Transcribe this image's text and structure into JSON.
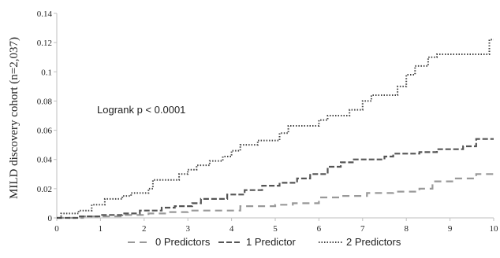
{
  "chart_data": {
    "type": "line",
    "ylabel": "MILD discovery cohort (n=2,037)",
    "xlim": [
      0,
      10
    ],
    "ylim": [
      0,
      0.14
    ],
    "x_ticks": [
      0,
      1,
      2,
      3,
      4,
      5,
      6,
      7,
      8,
      9,
      10
    ],
    "y_ticks": [
      0,
      0.02,
      0.04,
      0.06,
      0.08,
      0.1,
      0.12,
      0.14
    ],
    "y_tick_labels": [
      "0",
      "0.02",
      "0.04",
      "0.06",
      "0.08",
      "0.1",
      "0.12",
      "0.14"
    ],
    "grid": false,
    "legend_position": "bottom",
    "annotation": "Logrank p  < 0.0001",
    "series": [
      {
        "name": "0 Predictors",
        "style": "dashed-long",
        "color": "#999999",
        "points": [
          [
            0,
            0
          ],
          [
            0.6,
            0
          ],
          [
            0.6,
            0.001
          ],
          [
            1.5,
            0.001
          ],
          [
            1.5,
            0.002
          ],
          [
            2.1,
            0.002
          ],
          [
            2.1,
            0.003
          ],
          [
            2.5,
            0.003
          ],
          [
            2.5,
            0.004
          ],
          [
            3.0,
            0.004
          ],
          [
            3.0,
            0.005
          ],
          [
            4.2,
            0.005
          ],
          [
            4.2,
            0.008
          ],
          [
            5.0,
            0.008
          ],
          [
            5.0,
            0.009
          ],
          [
            5.4,
            0.009
          ],
          [
            5.4,
            0.01
          ],
          [
            6.0,
            0.01
          ],
          [
            6.0,
            0.014
          ],
          [
            6.5,
            0.014
          ],
          [
            6.5,
            0.015
          ],
          [
            7.1,
            0.015
          ],
          [
            7.1,
            0.017
          ],
          [
            7.7,
            0.017
          ],
          [
            7.7,
            0.018
          ],
          [
            8.3,
            0.018
          ],
          [
            8.3,
            0.02
          ],
          [
            8.6,
            0.02
          ],
          [
            8.6,
            0.025
          ],
          [
            9.1,
            0.025
          ],
          [
            9.1,
            0.027
          ],
          [
            9.6,
            0.027
          ],
          [
            9.6,
            0.03
          ],
          [
            10.0,
            0.03
          ]
        ]
      },
      {
        "name": "1 Predictor",
        "style": "dashed",
        "color": "#555555",
        "points": [
          [
            0,
            0
          ],
          [
            0.5,
            0
          ],
          [
            0.5,
            0.001
          ],
          [
            1.0,
            0.001
          ],
          [
            1.0,
            0.002
          ],
          [
            1.5,
            0.002
          ],
          [
            1.5,
            0.003
          ],
          [
            1.9,
            0.003
          ],
          [
            1.9,
            0.005
          ],
          [
            2.4,
            0.005
          ],
          [
            2.4,
            0.007
          ],
          [
            2.7,
            0.007
          ],
          [
            2.7,
            0.008
          ],
          [
            3.1,
            0.008
          ],
          [
            3.1,
            0.01
          ],
          [
            3.3,
            0.01
          ],
          [
            3.3,
            0.013
          ],
          [
            3.9,
            0.013
          ],
          [
            3.9,
            0.016
          ],
          [
            4.3,
            0.016
          ],
          [
            4.3,
            0.019
          ],
          [
            4.7,
            0.019
          ],
          [
            4.7,
            0.022
          ],
          [
            5.1,
            0.022
          ],
          [
            5.1,
            0.024
          ],
          [
            5.5,
            0.024
          ],
          [
            5.5,
            0.027
          ],
          [
            5.8,
            0.027
          ],
          [
            5.8,
            0.03
          ],
          [
            6.2,
            0.03
          ],
          [
            6.2,
            0.035
          ],
          [
            6.5,
            0.035
          ],
          [
            6.5,
            0.038
          ],
          [
            6.8,
            0.038
          ],
          [
            6.8,
            0.04
          ],
          [
            7.5,
            0.04
          ],
          [
            7.5,
            0.042
          ],
          [
            7.7,
            0.042
          ],
          [
            7.7,
            0.044
          ],
          [
            8.3,
            0.044
          ],
          [
            8.3,
            0.045
          ],
          [
            8.7,
            0.045
          ],
          [
            8.7,
            0.047
          ],
          [
            9.3,
            0.047
          ],
          [
            9.3,
            0.049
          ],
          [
            9.6,
            0.049
          ],
          [
            9.6,
            0.054
          ],
          [
            10.0,
            0.054
          ]
        ]
      },
      {
        "name": "2 Predictors",
        "style": "dotted",
        "color": "#444444",
        "points": [
          [
            0,
            0
          ],
          [
            0.1,
            0
          ],
          [
            0.1,
            0.003
          ],
          [
            0.5,
            0.003
          ],
          [
            0.5,
            0.005
          ],
          [
            0.8,
            0.005
          ],
          [
            0.8,
            0.009
          ],
          [
            1.1,
            0.009
          ],
          [
            1.1,
            0.013
          ],
          [
            1.5,
            0.013
          ],
          [
            1.5,
            0.015
          ],
          [
            1.7,
            0.015
          ],
          [
            1.7,
            0.017
          ],
          [
            2.1,
            0.017
          ],
          [
            2.1,
            0.02
          ],
          [
            2.2,
            0.02
          ],
          [
            2.2,
            0.026
          ],
          [
            2.8,
            0.026
          ],
          [
            2.8,
            0.03
          ],
          [
            3.0,
            0.03
          ],
          [
            3.0,
            0.033
          ],
          [
            3.2,
            0.033
          ],
          [
            3.2,
            0.036
          ],
          [
            3.5,
            0.036
          ],
          [
            3.5,
            0.039
          ],
          [
            3.8,
            0.039
          ],
          [
            3.8,
            0.042
          ],
          [
            4.0,
            0.042
          ],
          [
            4.0,
            0.046
          ],
          [
            4.2,
            0.046
          ],
          [
            4.2,
            0.05
          ],
          [
            4.6,
            0.05
          ],
          [
            4.6,
            0.053
          ],
          [
            5.1,
            0.053
          ],
          [
            5.1,
            0.058
          ],
          [
            5.3,
            0.058
          ],
          [
            5.3,
            0.063
          ],
          [
            6.0,
            0.063
          ],
          [
            6.0,
            0.067
          ],
          [
            6.2,
            0.067
          ],
          [
            6.2,
            0.07
          ],
          [
            6.7,
            0.07
          ],
          [
            6.7,
            0.074
          ],
          [
            7.0,
            0.074
          ],
          [
            7.0,
            0.08
          ],
          [
            7.2,
            0.08
          ],
          [
            7.2,
            0.084
          ],
          [
            7.8,
            0.084
          ],
          [
            7.8,
            0.09
          ],
          [
            8.0,
            0.09
          ],
          [
            8.0,
            0.098
          ],
          [
            8.2,
            0.098
          ],
          [
            8.2,
            0.104
          ],
          [
            8.5,
            0.104
          ],
          [
            8.5,
            0.11
          ],
          [
            8.7,
            0.11
          ],
          [
            8.7,
            0.112
          ],
          [
            9.9,
            0.112
          ],
          [
            9.9,
            0.122
          ],
          [
            10.0,
            0.122
          ]
        ]
      }
    ]
  }
}
